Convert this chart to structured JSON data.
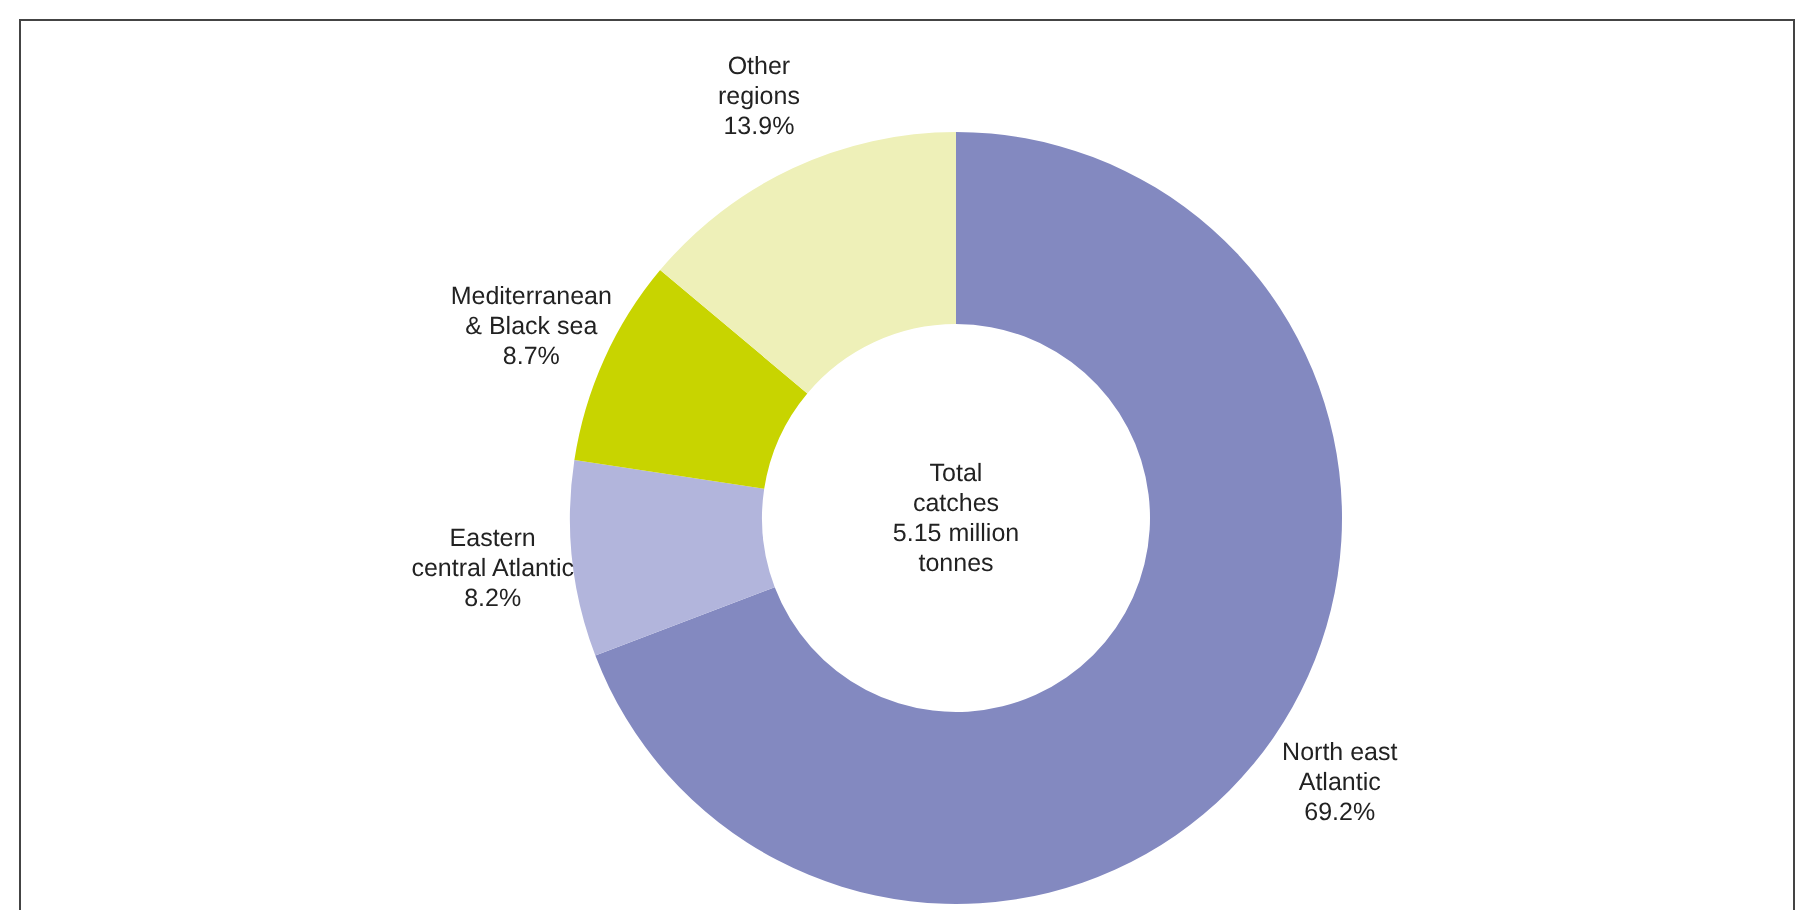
{
  "chart_data": {
    "type": "donut",
    "categories": [
      "North east\nAtlantic",
      "Eastern\ncentral Atlantic",
      "Mediterranean\n& Black sea",
      "Other\nregions"
    ],
    "values": [
      69.2,
      8.2,
      8.7,
      13.9
    ],
    "colors": [
      "#8389c0",
      "#b2b5dc",
      "#c8d400",
      "#eef0b8"
    ],
    "value_labels": [
      "69.2%",
      "8.2%",
      "8.7%",
      "13.9%"
    ],
    "annotations": [
      "Total\ncatches\n5.15 million\ntonnes"
    ]
  }
}
